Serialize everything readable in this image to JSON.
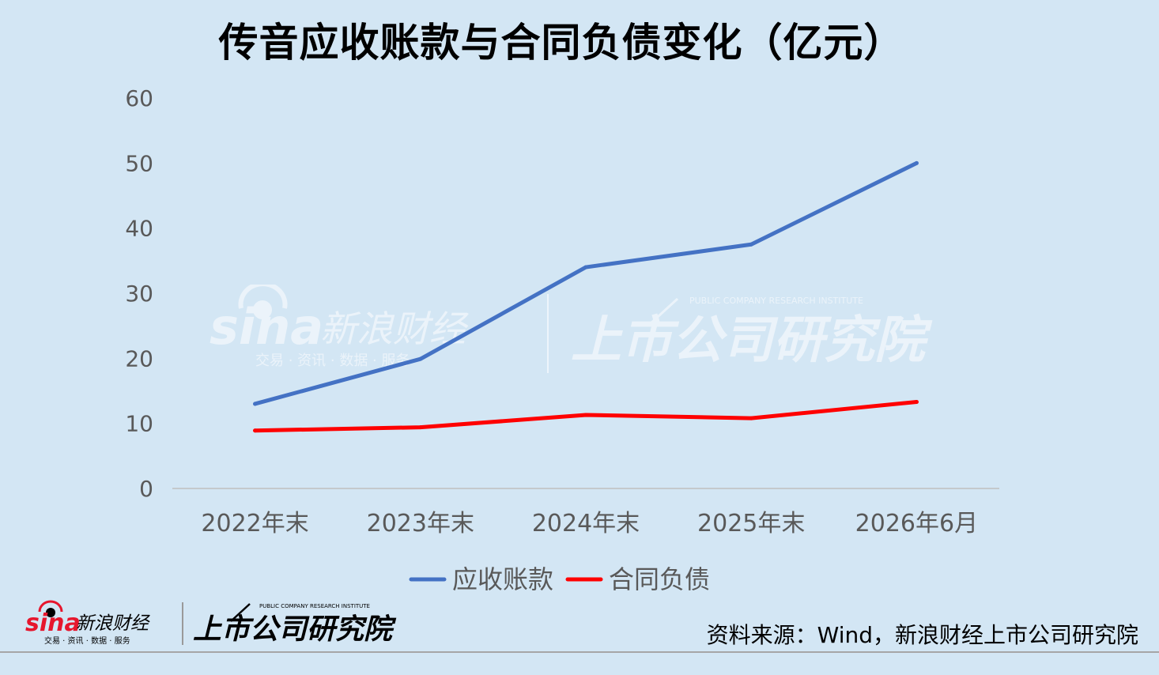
{
  "title": "传音应收账款与合同负债变化（亿元）",
  "source": "资料来源：Wind，新浪财经上市公司研究院",
  "branding": {
    "sina_logo_text": "sina",
    "sina_cn_text": "新浪财经",
    "sina_tagline": "交易 · 资讯 · 数据 · 服务",
    "institute_en": "PUBLIC COMPANY RESEARCH INSTITUTE",
    "institute_cn": "上市公司研究院"
  },
  "colors": {
    "background": "#d3e6f4",
    "series_receivables": "#4472c4",
    "series_contract_liabilities": "#ff0000",
    "axis": "#bfbfbf",
    "tick_text": "#595959",
    "sina_red": "#e6162d"
  },
  "chart_data": {
    "type": "line",
    "title": "传音应收账款与合同负债变化（亿元）",
    "categories": [
      "2022年末",
      "2023年末",
      "2024年末",
      "2025年末",
      "2026年6月"
    ],
    "series": [
      {
        "name": "应收账款",
        "color": "#4472c4",
        "values": [
          13.0,
          19.9,
          34.0,
          37.5,
          50.0
        ]
      },
      {
        "name": "合同负债",
        "color": "#ff0000",
        "values": [
          8.9,
          9.4,
          11.3,
          10.8,
          13.3
        ]
      }
    ],
    "ylim": [
      0,
      60
    ],
    "yticks": [
      0,
      10,
      20,
      30,
      40,
      50,
      60
    ],
    "grid": false,
    "legend_position": "bottom-center"
  }
}
